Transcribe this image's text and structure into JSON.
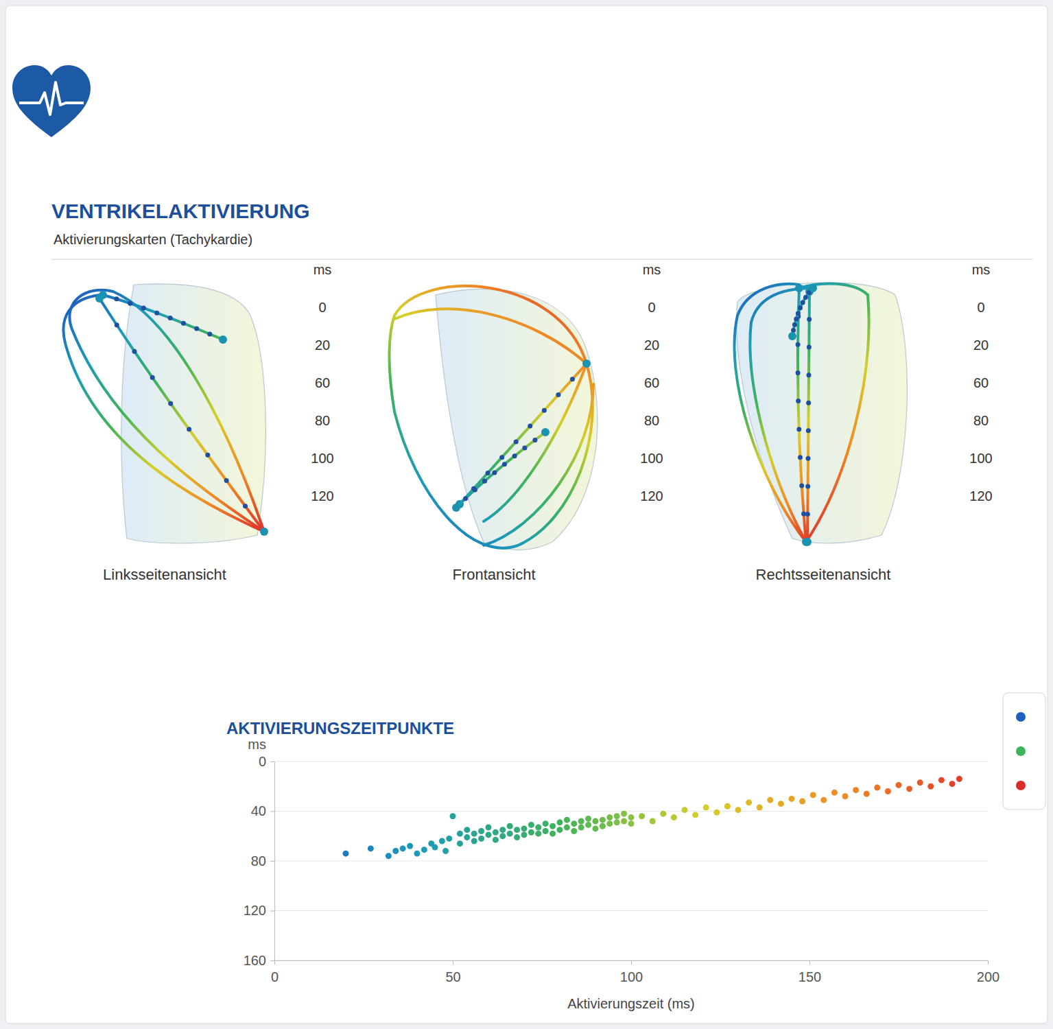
{
  "page": {
    "title": "VENTRIKELAKTIVIERUNG",
    "subtitle": "Aktivierungskarten (Tachykardie)",
    "views": [
      {
        "label": "Linksseitenansicht",
        "unit": "ms",
        "scale": [
          0,
          20,
          60,
          80,
          100,
          120
        ]
      },
      {
        "label": "Frontansicht",
        "unit": "ms",
        "scale": [
          0,
          20,
          60,
          80,
          100,
          120
        ]
      },
      {
        "label": "Rechtsseitenansicht",
        "unit": "ms",
        "scale": [
          0,
          20,
          60,
          80,
          100,
          120
        ]
      }
    ]
  },
  "chart_data": {
    "type": "scatter",
    "title": "AKTIVIERUNGSZEITPUNKTE",
    "x_label": "Aktivierungszeit (ms)",
    "y_label": "ms",
    "marker": "circle",
    "grid": true,
    "x": [
      20,
      27,
      32,
      34,
      36,
      38,
      40,
      42,
      44,
      45,
      47,
      48,
      49,
      50,
      52,
      52,
      54,
      54,
      56,
      56,
      58,
      58,
      60,
      60,
      62,
      62,
      64,
      64,
      66,
      66,
      68,
      68,
      70,
      70,
      72,
      72,
      74,
      74,
      76,
      76,
      78,
      78,
      80,
      80,
      82,
      82,
      84,
      84,
      86,
      86,
      88,
      88,
      90,
      90,
      92,
      92,
      94,
      94,
      96,
      96,
      98,
      98,
      100,
      100,
      103,
      106,
      109,
      112,
      115,
      118,
      121,
      124,
      127,
      130,
      133,
      136,
      139,
      142,
      145,
      148,
      151,
      154,
      157,
      160,
      163,
      166,
      169,
      172,
      175,
      178,
      181,
      184,
      187,
      190,
      192
    ],
    "values": [
      74,
      70,
      76,
      72,
      70,
      68,
      74,
      71,
      66,
      69,
      64,
      72,
      62,
      44,
      58,
      66,
      61,
      55,
      64,
      58,
      56,
      62,
      59,
      53,
      63,
      57,
      55,
      60,
      58,
      52,
      61,
      55,
      54,
      59,
      57,
      51,
      53,
      58,
      56,
      50,
      52,
      58,
      49,
      55,
      53,
      47,
      56,
      50,
      48,
      53,
      51,
      46,
      54,
      48,
      47,
      52,
      50,
      45,
      44,
      49,
      48,
      42,
      45,
      50,
      44,
      48,
      42,
      45,
      39,
      43,
      37,
      41,
      36,
      39,
      33,
      37,
      31,
      34,
      30,
      32,
      27,
      31,
      25,
      28,
      23,
      26,
      21,
      24,
      19,
      22,
      17,
      20,
      15,
      18,
      14
    ],
    "xlim": [
      0,
      200
    ],
    "xticks": [
      0,
      50,
      100,
      150,
      200
    ],
    "ylim": [
      0,
      160
    ],
    "yticks": [
      0,
      40,
      80,
      120,
      160
    ]
  }
}
